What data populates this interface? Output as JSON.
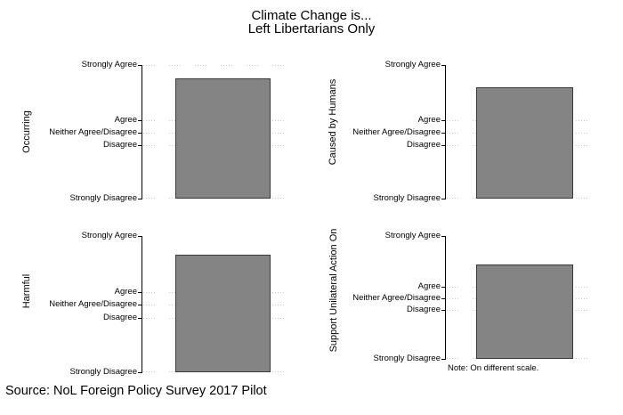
{
  "title": {
    "line1": "Climate Change is...",
    "line2": "Left Libertarians Only"
  },
  "source_note": "Source: NoL Foreign Policy Survey 2017 Pilot",
  "colors": {
    "background": "#ffffff",
    "text": "#000000",
    "axis": "#000000",
    "grid_dots": "#c9c9c9",
    "bar_fill": "#848484",
    "bar_outline": "#3a3a3a"
  },
  "chart_data": [
    {
      "type": "bar",
      "id": "occurring",
      "panel": "top-left",
      "ylabel": "Occurring",
      "y_ticks": [
        {
          "label": "Strongly Agree",
          "fraction_from_top": 0.0,
          "grid": true
        },
        {
          "label": "Agree",
          "fraction_from_top": 0.413,
          "grid": true
        },
        {
          "label": "Neither Agree/Disagree",
          "fraction_from_top": 0.505,
          "grid": true
        },
        {
          "label": "Disagree",
          "fraction_from_top": 0.6,
          "grid": true
        },
        {
          "label": "Strongly Disagree",
          "fraction_from_top": 1.0,
          "grid": true
        }
      ],
      "bars": [
        {
          "height_fraction": 0.9,
          "approx_mean_1to5_linear_est": 4.6
        }
      ],
      "note": ""
    },
    {
      "type": "bar",
      "id": "caused-by-humans",
      "panel": "top-right",
      "ylabel": "Caused by Humans",
      "y_ticks": [
        {
          "label": "Strongly Agree",
          "fraction_from_top": 0.0,
          "grid": false
        },
        {
          "label": "Agree",
          "fraction_from_top": 0.413,
          "grid": true
        },
        {
          "label": "Neither Agree/Disagree",
          "fraction_from_top": 0.505,
          "grid": true
        },
        {
          "label": "Disagree",
          "fraction_from_top": 0.6,
          "grid": true
        },
        {
          "label": "Strongly Disagree",
          "fraction_from_top": 1.0,
          "grid": true
        }
      ],
      "bars": [
        {
          "height_fraction": 0.833,
          "approx_mean_1to5_linear_est": 4.33
        }
      ],
      "note": ""
    },
    {
      "type": "bar",
      "id": "harmful",
      "panel": "bottom-left",
      "ylabel": "Harmful",
      "y_ticks": [
        {
          "label": "Strongly Agree",
          "fraction_from_top": 0.0,
          "grid": false
        },
        {
          "label": "Agree",
          "fraction_from_top": 0.413,
          "grid": true
        },
        {
          "label": "Neither Agree/Disagree",
          "fraction_from_top": 0.505,
          "grid": true
        },
        {
          "label": "Disagree",
          "fraction_from_top": 0.6,
          "grid": true
        },
        {
          "label": "Strongly Disagree",
          "fraction_from_top": 1.0,
          "grid": true
        }
      ],
      "bars": [
        {
          "height_fraction": 0.864,
          "approx_mean_1to5_linear_est": 4.46
        }
      ],
      "note": ""
    },
    {
      "type": "bar",
      "id": "support-unilateral-action",
      "panel": "bottom-right",
      "ylabel": "Support Unilateral Action On",
      "y_ticks": [
        {
          "label": "Strongly Agree",
          "fraction_from_top": 0.0,
          "grid": false
        },
        {
          "label": "Agree",
          "fraction_from_top": 0.413,
          "grid": true
        },
        {
          "label": "Neither Agree/Disagree",
          "fraction_from_top": 0.505,
          "grid": true
        },
        {
          "label": "Disagree",
          "fraction_from_top": 0.6,
          "grid": true
        },
        {
          "label": "Strongly Disagree",
          "fraction_from_top": 1.0,
          "grid": true
        }
      ],
      "bars": [
        {
          "height_fraction": 0.766,
          "approx_mean_1to5_linear_est": 4.06
        }
      ],
      "note": "Note: On different scale."
    }
  ]
}
